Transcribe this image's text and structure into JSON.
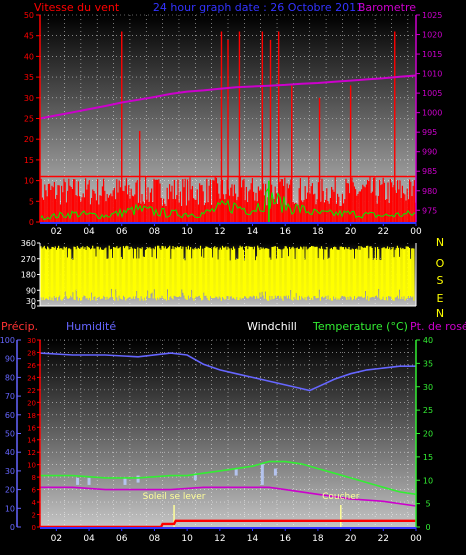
{
  "top": {
    "title_left": "Vitesse du vent",
    "title_center": "24 hour graph date : 26 Octobre 2011",
    "title_right": "Barometre"
  },
  "mid": {
    "direction_letters": [
      "N",
      "O",
      "S",
      "E",
      "N"
    ]
  },
  "bottom": {
    "label_precip": "Précip.",
    "label_humidity": "Humidité",
    "label_windchill": "Windchill",
    "label_temperature": "Temperature (°C)",
    "label_dewpoint": "Pt. de rosée",
    "sunrise_label": "Soleil se lever",
    "sunset_label": "Coucher"
  },
  "colors": {
    "wind": "#ff0000",
    "barometer": "#cc00cc",
    "gust": "#00ee00",
    "direction": "#ffff00",
    "humidity": "#6666ff",
    "temperature": "#33ee33",
    "dewpoint": "#cc00cc",
    "windchill": "#bbccff",
    "precip": "#ff0000",
    "sun": "#ffff99",
    "axis_x": "#3333ff"
  },
  "chart_data": [
    {
      "type": "line",
      "name": "wind-barometer",
      "title": "24 hour graph date : 26 Octobre 2011",
      "x_ticks": [
        "02",
        "04",
        "06",
        "08",
        "10",
        "12",
        "14",
        "16",
        "18",
        "20",
        "22",
        "00"
      ],
      "x_range": [
        1.0,
        24.0
      ],
      "y_left": {
        "label": "Vitesse du vent",
        "range": [
          0,
          50
        ],
        "ticks": [
          0,
          5,
          10,
          15,
          20,
          25,
          30,
          35,
          40,
          45,
          50
        ]
      },
      "y_right": {
        "label": "Barometre",
        "range": [
          972,
          1025
        ],
        "ticks": [
          975,
          980,
          985,
          990,
          995,
          1000,
          1005,
          1010,
          1015,
          1020,
          1025
        ]
      },
      "series": [
        {
          "name": "Barometre",
          "axis": "right",
          "x": [
            1.0,
            2.0,
            3.0,
            4.0,
            5.0,
            6.0,
            7.0,
            8.0,
            9.0,
            10.0,
            11.0,
            12.0,
            13.0,
            14.0,
            15.0,
            16.0,
            17.0,
            18.0,
            19.0,
            20.0,
            21.0,
            22.0,
            23.0,
            24.0
          ],
          "values": [
            998.5,
            999.3,
            1000.1,
            1000.9,
            1001.7,
            1002.6,
            1003.3,
            1004.0,
            1004.8,
            1005.4,
            1005.7,
            1006.1,
            1006.5,
            1006.7,
            1006.9,
            1007.1,
            1007.4,
            1007.6,
            1007.9,
            1008.2,
            1008.5,
            1008.8,
            1009.2,
            1009.5
          ]
        },
        {
          "name": "Vitesse du vent",
          "axis": "left",
          "base": 0,
          "band_top": 11,
          "spikes": [
            [
              6.0,
              46
            ],
            [
              7.1,
              22
            ],
            [
              12.1,
              46
            ],
            [
              12.5,
              44
            ],
            [
              13.2,
              46
            ],
            [
              14.6,
              46
            ],
            [
              15.1,
              44
            ],
            [
              15.6,
              46
            ],
            [
              16.4,
              33
            ],
            [
              18.1,
              30
            ],
            [
              20.0,
              33
            ],
            [
              22.7,
              46
            ]
          ]
        },
        {
          "name": "Rafale",
          "axis": "left",
          "x": [
            1.0,
            3.0,
            5.0,
            7.0,
            9.0,
            11.0,
            12.5,
            14.0,
            15.0,
            16.0,
            18.0,
            20.0,
            22.0,
            24.0
          ],
          "values": [
            1,
            2,
            1.5,
            3,
            2,
            2,
            4,
            3,
            6,
            4,
            2,
            2,
            1.5,
            2
          ]
        }
      ]
    },
    {
      "type": "bar",
      "name": "wind-direction",
      "y_range": [
        0,
        360
      ],
      "y_ticks": [
        0,
        30,
        90,
        180,
        270,
        360
      ],
      "right_labels": [
        "N",
        "O",
        "S",
        "E",
        "N"
      ],
      "band": {
        "low": 30,
        "high": 345
      }
    },
    {
      "type": "line",
      "name": "temperature-humidity",
      "x_ticks": [
        "02",
        "04",
        "06",
        "08",
        "10",
        "12",
        "14",
        "16",
        "18",
        "20",
        "22",
        "00"
      ],
      "x_range": [
        1.0,
        24.0
      ],
      "y_humidity": {
        "label": "Humidité",
        "range": [
          0,
          100
        ],
        "ticks": [
          0,
          10,
          20,
          30,
          40,
          50,
          60,
          70,
          80,
          90,
          100
        ]
      },
      "y_precip": {
        "label": "Précip.",
        "range": [
          0,
          30
        ],
        "ticks": [
          0,
          2,
          4,
          6,
          8,
          10,
          12,
          14,
          16,
          18,
          20,
          22,
          24,
          26,
          28,
          30
        ]
      },
      "y_temperature": {
        "label": "Temperature (°C)",
        "range": [
          0,
          40
        ],
        "ticks": [
          0,
          5,
          10,
          15,
          20,
          25,
          30,
          35,
          40
        ]
      },
      "series": [
        {
          "name": "Humidité",
          "axis": "humidity",
          "x": [
            1.0,
            3.0,
            5.0,
            7.0,
            9.0,
            10.0,
            11.0,
            12.0,
            13.0,
            14.0,
            15.0,
            16.0,
            17.0,
            17.5,
            18.0,
            19.0,
            20.0,
            21.0,
            22.0,
            23.0,
            24.0
          ],
          "values": [
            93,
            92,
            92,
            91,
            93,
            92,
            87,
            84,
            82,
            80,
            78,
            76,
            74,
            73,
            75,
            79,
            82,
            84,
            85,
            86,
            86
          ]
        },
        {
          "name": "Temperature (°C)",
          "axis": "temperature",
          "x": [
            1.0,
            3.0,
            5.0,
            7.0,
            9.0,
            10.0,
            11.0,
            12.0,
            13.0,
            14.0,
            15.0,
            16.0,
            17.0,
            18.0,
            19.0,
            20.0,
            21.0,
            22.0,
            23.0,
            24.0
          ],
          "values": [
            11,
            11,
            10.5,
            10.5,
            11,
            11,
            11.5,
            12,
            12.5,
            13,
            14,
            14,
            13.5,
            12.5,
            11.5,
            10.5,
            9.5,
            8.5,
            7.5,
            7
          ]
        },
        {
          "name": "Pt. de rosée",
          "axis": "temperature",
          "x": [
            1.0,
            3.0,
            5.0,
            7.0,
            9.0,
            11.0,
            13.0,
            14.0,
            15.0,
            16.0,
            17.0,
            18.0,
            20.0,
            22.0,
            24.0
          ],
          "values": [
            8.5,
            8.5,
            8,
            8,
            8,
            8.5,
            8.5,
            8.5,
            8.5,
            8,
            7.5,
            7,
            6,
            5.5,
            4.5
          ]
        },
        {
          "name": "Windchill",
          "axis": "temperature",
          "bars_x": [
            3.3,
            4.0,
            6.2,
            7.0,
            10.5,
            13.0,
            14.6,
            15.4
          ],
          "bars_low": [
            9,
            9,
            9,
            9.5,
            10,
            11,
            9,
            11
          ],
          "bars_high": [
            10.5,
            10.5,
            10.5,
            11,
            11.5,
            12.5,
            13.5,
            12.5
          ]
        },
        {
          "name": "Précip.",
          "axis": "precip",
          "x": [
            1.0,
            8.4,
            8.5,
            9.2,
            9.3,
            24.0
          ],
          "values": [
            0,
            0,
            0.5,
            0.5,
            1,
            1
          ]
        }
      ],
      "sunrise": 9.2,
      "sunset": 19.4
    }
  ]
}
